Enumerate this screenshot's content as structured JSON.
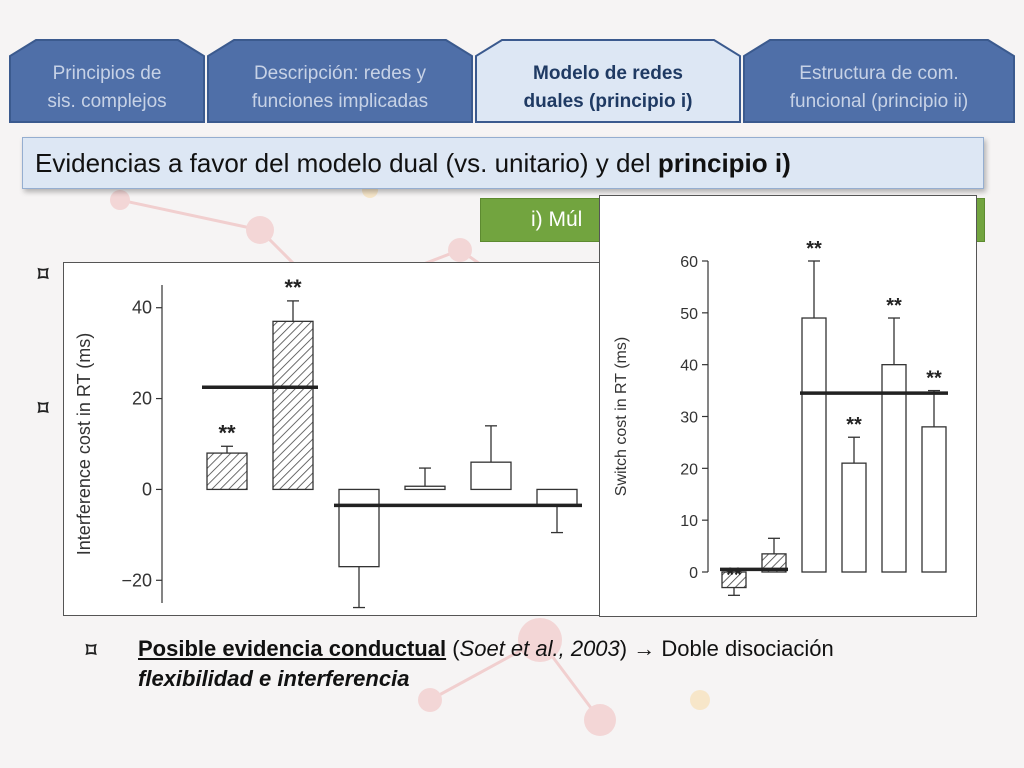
{
  "tabs": [
    {
      "line1": "Principios de",
      "line2": "sis. complejos",
      "active": false
    },
    {
      "line1": "Descripción: redes y",
      "line2": "funciones implicadas",
      "active": false
    },
    {
      "line1": "Modelo de redes",
      "line2": "duales (principio i)",
      "active": true
    },
    {
      "line1": "Estructura de com.",
      "line2": "funcional (principio ii)",
      "active": false
    }
  ],
  "title": {
    "prefix": "Evidencias a favor del modelo dual (vs. unitario) y del ",
    "bold": "principio i)"
  },
  "green_box": {
    "label": "i) Múl"
  },
  "bullets": {
    "symbol": "⌑"
  },
  "bottom": {
    "symbol": "⌑",
    "underlined": "Posible evidencia conductual",
    "citation_open": " (",
    "citation": "Soet et al., 2003",
    "citation_close": ") ",
    "arrow": "→",
    "rest": " Doble disociación",
    "line2": "flexibilidad e interferencia"
  },
  "colors": {
    "accent": "#72a43f",
    "tab_fill": "#4f6fa8",
    "tab_active_fill": "#dde7f4",
    "title_bg": "#dde7f4"
  },
  "chart_data": [
    {
      "type": "bar",
      "ylabel": "Interference cost in RT (ms)",
      "ylim": [
        -25,
        45
      ],
      "yticks": [
        -20,
        0,
        20,
        40
      ],
      "ytick_labels": [
        "−20",
        "0",
        "20",
        "40"
      ],
      "bars": [
        {
          "value": 8,
          "error": 1.5,
          "hatched": true,
          "annotation": "**"
        },
        {
          "value": 37,
          "error": 4.5,
          "hatched": true,
          "annotation": "**"
        },
        {
          "value": -17,
          "error": 9,
          "hatched": false,
          "annotation": ""
        },
        {
          "value": 0.7,
          "error": 4,
          "hatched": false,
          "annotation": ""
        },
        {
          "value": 6,
          "error": 8,
          "hatched": false,
          "annotation": ""
        },
        {
          "value": -3.5,
          "error": 6,
          "hatched": false,
          "annotation": ""
        }
      ],
      "mean_lines": [
        {
          "from_bar": 0,
          "to_bar": 1,
          "value": 22.5
        },
        {
          "from_bar": 2,
          "to_bar": 5,
          "value": -3.5
        }
      ]
    },
    {
      "type": "bar",
      "ylabel": "Switch cost in RT (ms)",
      "ylim": [
        0,
        60
      ],
      "yticks": [
        0,
        10,
        20,
        30,
        40,
        50,
        60
      ],
      "ytick_labels": [
        "0",
        "10",
        "20",
        "30",
        "40",
        "50",
        "60"
      ],
      "bars": [
        {
          "value": -3,
          "error": 1.5,
          "hatched": true,
          "annotation": "**"
        },
        {
          "value": 3.5,
          "error": 3,
          "hatched": true,
          "annotation": ""
        },
        {
          "value": 49,
          "error": 11,
          "hatched": false,
          "annotation": "**"
        },
        {
          "value": 21,
          "error": 5,
          "hatched": false,
          "annotation": "**"
        },
        {
          "value": 40,
          "error": 9,
          "hatched": false,
          "annotation": "**"
        },
        {
          "value": 28,
          "error": 7,
          "hatched": false,
          "annotation": "**"
        }
      ],
      "mean_lines": [
        {
          "from_bar": 0,
          "to_bar": 1,
          "value": 0.5
        },
        {
          "from_bar": 2,
          "to_bar": 5,
          "value": 34.5
        }
      ]
    }
  ]
}
